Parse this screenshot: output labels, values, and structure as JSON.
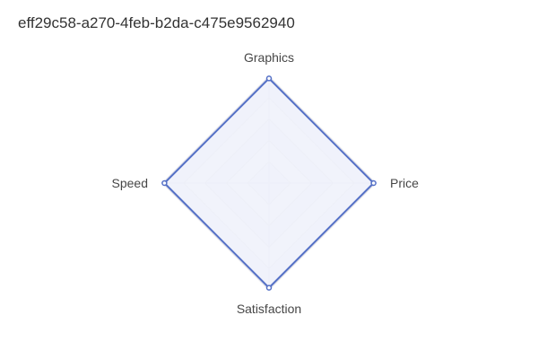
{
  "chart_data": {
    "type": "radar",
    "title": "eff29c58-a270-4feb-b2da-c475e9562940",
    "indicators": [
      "Graphics",
      "Price",
      "Satisfaction",
      "Speed"
    ],
    "max": 100,
    "grid_levels": 5,
    "series": [
      {
        "values": [
          98,
          98,
          98,
          98
        ],
        "color": "#5470c6",
        "area_color": "#eef1fa"
      }
    ],
    "grid_color": "#e0e0e6",
    "split_area_colors": [
      "#ffffff",
      "#f7f7fb"
    ]
  }
}
